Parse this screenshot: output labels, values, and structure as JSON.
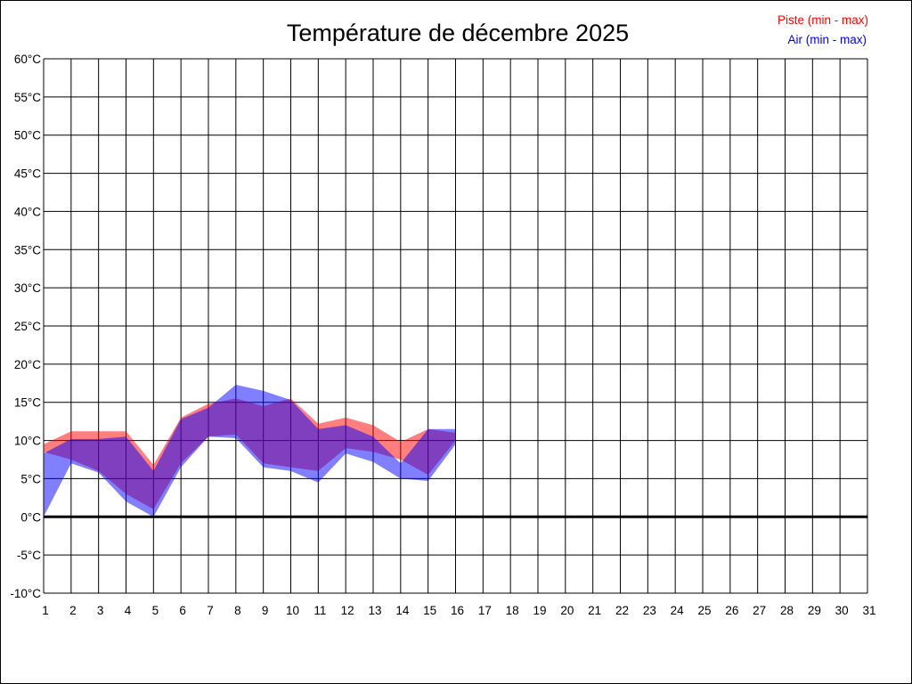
{
  "chart_data": {
    "type": "area",
    "title": "Température de décembre 2025",
    "xlabel": "",
    "ylabel": "",
    "x": [
      1,
      2,
      3,
      4,
      5,
      6,
      7,
      8,
      9,
      10,
      11,
      12,
      13,
      14,
      15,
      16
    ],
    "xlim": [
      1,
      31
    ],
    "ylim": [
      -10,
      60
    ],
    "y_unit": "°C",
    "grid": true,
    "legend_position": "top-right",
    "series": [
      {
        "name": "Piste (min - max)",
        "color": "#ff0000",
        "min": [
          8.5,
          7.5,
          6.0,
          3.0,
          1.0,
          7.0,
          10.5,
          10.8,
          7.0,
          6.5,
          6.0,
          9.0,
          8.5,
          7.5,
          5.5,
          10.0
        ],
        "max": [
          9.5,
          11.2,
          11.2,
          11.2,
          6.8,
          13.0,
          14.8,
          15.5,
          14.5,
          15.5,
          12.2,
          13.0,
          12.0,
          9.8,
          11.5,
          11.0
        ]
      },
      {
        "name": "Air (min - max)",
        "color": "#0000ff",
        "min": [
          0.0,
          7.0,
          5.8,
          2.0,
          0.0,
          6.5,
          10.5,
          10.3,
          6.5,
          6.0,
          4.5,
          8.3,
          7.2,
          5.0,
          4.7,
          9.5
        ],
        "max": [
          8.3,
          10.2,
          10.2,
          10.5,
          6.0,
          12.8,
          14.3,
          17.3,
          16.5,
          15.3,
          11.5,
          12.0,
          10.5,
          7.0,
          11.5,
          11.5
        ]
      }
    ],
    "y_ticks": [
      60,
      55,
      50,
      45,
      40,
      35,
      30,
      25,
      20,
      15,
      10,
      5,
      0,
      -5,
      -10
    ],
    "x_ticks": [
      1,
      2,
      3,
      4,
      5,
      6,
      7,
      8,
      9,
      10,
      11,
      12,
      13,
      14,
      15,
      16,
      17,
      18,
      19,
      20,
      21,
      22,
      23,
      24,
      25,
      26,
      27,
      28,
      29,
      30,
      31
    ]
  }
}
